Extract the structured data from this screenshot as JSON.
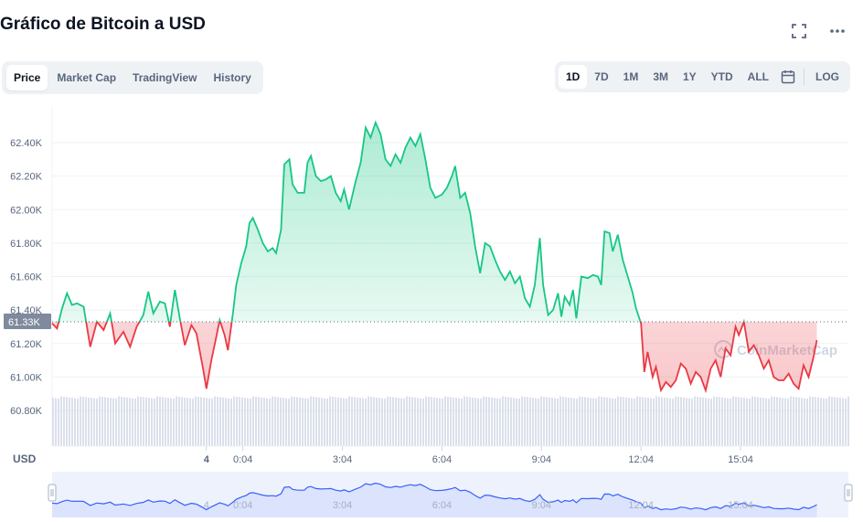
{
  "header": {
    "title": "Gráfico de Bitcoin a USD",
    "fullscreen_icon": "fullscreen-icon",
    "more_icon": "more-horizontal-icon"
  },
  "tabs": [
    {
      "label": "Price",
      "active": true
    },
    {
      "label": "Market Cap",
      "active": false
    },
    {
      "label": "TradingView",
      "active": false
    },
    {
      "label": "History",
      "active": false
    }
  ],
  "ranges": [
    {
      "label": "1D",
      "active": true
    },
    {
      "label": "7D",
      "active": false
    },
    {
      "label": "1M",
      "active": false
    },
    {
      "label": "3M",
      "active": false
    },
    {
      "label": "1Y",
      "active": false
    },
    {
      "label": "YTD",
      "active": false
    },
    {
      "label": "ALL",
      "active": false
    }
  ],
  "calendar_icon": "calendar-icon",
  "log_label": "LOG",
  "chart_data": {
    "type": "line",
    "currency_label": "USD",
    "watermark": "CoinMarketCap",
    "current_price_label": "61.33K",
    "reference_price": 61.33,
    "y_ticks": [
      "62.40K",
      "62.20K",
      "62.00K",
      "61.80K",
      "61.60K",
      "61.40K",
      "61.20K",
      "61.00K",
      "60.80K"
    ],
    "y_tick_values": [
      62.4,
      62.2,
      62.0,
      61.8,
      61.6,
      61.4,
      61.2,
      61.0,
      60.8
    ],
    "ylim": [
      60.8,
      62.52
    ],
    "x_ticks": [
      "4",
      "0:04",
      "3:04",
      "6:04",
      "9:04",
      "12:04",
      "15:04"
    ],
    "x_tick_hours": [
      -1.1,
      0,
      3,
      6,
      9,
      12,
      15
    ],
    "xlim": [
      -5.75,
      18.25
    ],
    "colors": {
      "up": "#16c784",
      "down": "#ea3943"
    },
    "series": [
      {
        "values": [
          [
            -5.75,
            61.32
          ],
          [
            -5.6,
            61.29
          ],
          [
            -5.45,
            61.41
          ],
          [
            -5.3,
            61.5
          ],
          [
            -5.15,
            61.43
          ],
          [
            -5.0,
            61.44
          ],
          [
            -4.8,
            61.42
          ],
          [
            -4.6,
            61.18
          ],
          [
            -4.4,
            61.33
          ],
          [
            -4.2,
            61.28
          ],
          [
            -4.0,
            61.38
          ],
          [
            -3.85,
            61.2
          ],
          [
            -3.6,
            61.27
          ],
          [
            -3.4,
            61.18
          ],
          [
            -3.2,
            61.3
          ],
          [
            -3.0,
            61.37
          ],
          [
            -2.85,
            61.51
          ],
          [
            -2.7,
            61.38
          ],
          [
            -2.5,
            61.45
          ],
          [
            -2.35,
            61.44
          ],
          [
            -2.2,
            61.3
          ],
          [
            -2.05,
            61.52
          ],
          [
            -1.9,
            61.35
          ],
          [
            -1.75,
            61.19
          ],
          [
            -1.55,
            61.31
          ],
          [
            -1.4,
            61.26
          ],
          [
            -1.2,
            61.05
          ],
          [
            -1.1,
            60.93
          ],
          [
            -0.95,
            61.1
          ],
          [
            -0.8,
            61.24
          ],
          [
            -0.7,
            61.34
          ],
          [
            -0.55,
            61.25
          ],
          [
            -0.45,
            61.16
          ],
          [
            -0.3,
            61.38
          ],
          [
            -0.2,
            61.55
          ],
          [
            -0.05,
            61.68
          ],
          [
            0.1,
            61.78
          ],
          [
            0.2,
            61.92
          ],
          [
            0.3,
            61.95
          ],
          [
            0.45,
            61.88
          ],
          [
            0.6,
            61.8
          ],
          [
            0.75,
            61.75
          ],
          [
            0.9,
            61.77
          ],
          [
            1.0,
            61.74
          ],
          [
            1.15,
            61.88
          ],
          [
            1.25,
            62.27
          ],
          [
            1.4,
            62.3
          ],
          [
            1.5,
            62.15
          ],
          [
            1.65,
            62.1
          ],
          [
            1.85,
            62.1
          ],
          [
            1.95,
            62.28
          ],
          [
            2.05,
            62.32
          ],
          [
            2.2,
            62.2
          ],
          [
            2.35,
            62.17
          ],
          [
            2.5,
            62.18
          ],
          [
            2.65,
            62.2
          ],
          [
            2.8,
            62.1
          ],
          [
            2.95,
            62.05
          ],
          [
            3.05,
            62.12
          ],
          [
            3.2,
            62.0
          ],
          [
            3.4,
            62.17
          ],
          [
            3.55,
            62.28
          ],
          [
            3.7,
            62.49
          ],
          [
            3.85,
            62.43
          ],
          [
            4.0,
            62.52
          ],
          [
            4.15,
            62.45
          ],
          [
            4.3,
            62.3
          ],
          [
            4.45,
            62.26
          ],
          [
            4.6,
            62.33
          ],
          [
            4.75,
            62.28
          ],
          [
            4.9,
            62.37
          ],
          [
            5.05,
            62.43
          ],
          [
            5.2,
            62.38
          ],
          [
            5.35,
            62.45
          ],
          [
            5.5,
            62.3
          ],
          [
            5.65,
            62.13
          ],
          [
            5.8,
            62.07
          ],
          [
            6.0,
            62.09
          ],
          [
            6.15,
            62.13
          ],
          [
            6.3,
            62.2
          ],
          [
            6.4,
            62.26
          ],
          [
            6.55,
            62.07
          ],
          [
            6.7,
            62.1
          ],
          [
            6.85,
            61.98
          ],
          [
            7.0,
            61.78
          ],
          [
            7.15,
            61.62
          ],
          [
            7.3,
            61.8
          ],
          [
            7.45,
            61.78
          ],
          [
            7.6,
            61.7
          ],
          [
            7.75,
            61.63
          ],
          [
            7.9,
            61.58
          ],
          [
            8.05,
            61.63
          ],
          [
            8.2,
            61.56
          ],
          [
            8.35,
            61.6
          ],
          [
            8.5,
            61.47
          ],
          [
            8.65,
            61.42
          ],
          [
            8.8,
            61.55
          ],
          [
            8.95,
            61.83
          ],
          [
            9.05,
            61.55
          ],
          [
            9.2,
            61.37
          ],
          [
            9.35,
            61.4
          ],
          [
            9.5,
            61.5
          ],
          [
            9.6,
            61.36
          ],
          [
            9.7,
            61.48
          ],
          [
            9.85,
            61.43
          ],
          [
            9.95,
            61.52
          ],
          [
            10.05,
            61.35
          ],
          [
            10.2,
            61.6
          ],
          [
            10.4,
            61.59
          ],
          [
            10.55,
            61.61
          ],
          [
            10.7,
            61.6
          ],
          [
            10.8,
            61.55
          ],
          [
            10.9,
            61.87
          ],
          [
            11.05,
            61.86
          ],
          [
            11.15,
            61.75
          ],
          [
            11.3,
            61.85
          ],
          [
            11.45,
            61.7
          ],
          [
            11.6,
            61.6
          ],
          [
            11.75,
            61.5
          ],
          [
            11.85,
            61.41
          ],
          [
            12.0,
            61.32
          ],
          [
            12.1,
            61.03
          ],
          [
            12.2,
            61.15
          ],
          [
            12.35,
            61.0
          ],
          [
            12.45,
            61.06
          ],
          [
            12.6,
            60.92
          ],
          [
            12.75,
            60.97
          ],
          [
            12.9,
            60.94
          ],
          [
            13.05,
            60.98
          ],
          [
            13.2,
            61.08
          ],
          [
            13.35,
            61.05
          ],
          [
            13.5,
            60.96
          ],
          [
            13.65,
            61.03
          ],
          [
            13.8,
            61.0
          ],
          [
            13.95,
            60.92
          ],
          [
            14.1,
            61.05
          ],
          [
            14.25,
            61.1
          ],
          [
            14.4,
            61.0
          ],
          [
            14.55,
            61.17
          ],
          [
            14.7,
            61.13
          ],
          [
            14.85,
            61.3
          ],
          [
            14.95,
            61.25
          ],
          [
            15.1,
            61.33
          ],
          [
            15.25,
            61.15
          ],
          [
            15.4,
            61.19
          ],
          [
            15.55,
            61.13
          ],
          [
            15.7,
            61.05
          ],
          [
            15.85,
            61.1
          ],
          [
            16.0,
            61.0
          ],
          [
            16.15,
            60.98
          ],
          [
            16.3,
            60.98
          ],
          [
            16.45,
            61.02
          ],
          [
            16.6,
            60.96
          ],
          [
            16.75,
            60.93
          ],
          [
            16.9,
            61.07
          ],
          [
            17.05,
            61.0
          ],
          [
            17.2,
            61.12
          ],
          [
            17.3,
            61.22
          ]
        ]
      }
    ],
    "navigator": {
      "x_ticks": [
        "4",
        "0:04",
        "3:04",
        "6:04",
        "9:04",
        "12:04",
        "15:04"
      ],
      "colors": {
        "line": "#3861fb",
        "fill": "#dbe3fd"
      }
    }
  }
}
